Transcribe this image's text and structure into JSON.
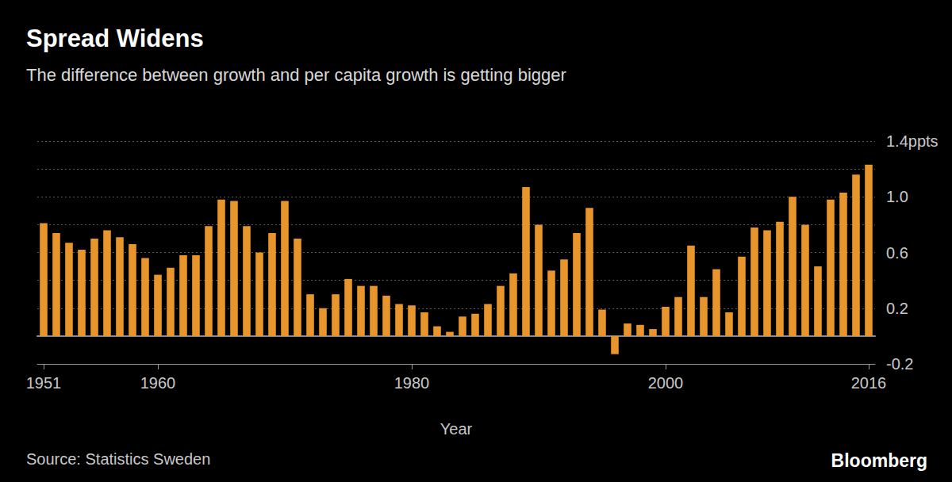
{
  "chart_data": {
    "type": "bar",
    "title": "Spread Widens",
    "subtitle": "The difference between growth and per capita growth is getting bigger",
    "x_label": "Year",
    "source": "Source: Statistics Sweden",
    "logo": "Bloomberg",
    "color": "#e8952e",
    "grid": true,
    "categories": [
      "1951",
      null,
      null,
      null,
      null,
      null,
      null,
      null,
      null,
      "1960",
      null,
      null,
      null,
      null,
      null,
      null,
      null,
      null,
      null,
      null,
      null,
      null,
      null,
      null,
      null,
      null,
      null,
      null,
      null,
      "1980",
      null,
      null,
      null,
      null,
      null,
      null,
      null,
      null,
      null,
      null,
      null,
      null,
      null,
      null,
      null,
      null,
      null,
      null,
      null,
      "2000",
      null,
      null,
      null,
      null,
      null,
      null,
      null,
      null,
      null,
      null,
      null,
      null,
      null,
      null,
      null,
      "2016"
    ],
    "values": [
      0.81,
      0.74,
      0.67,
      0.62,
      0.7,
      0.76,
      0.71,
      0.66,
      0.56,
      0.44,
      0.49,
      0.58,
      0.58,
      0.79,
      0.98,
      0.97,
      0.79,
      0.6,
      0.74,
      0.97,
      0.7,
      0.3,
      0.2,
      0.3,
      0.41,
      0.36,
      0.36,
      0.29,
      0.23,
      0.22,
      0.17,
      0.07,
      0.03,
      0.14,
      0.16,
      0.23,
      0.36,
      0.45,
      1.07,
      0.8,
      0.47,
      0.55,
      0.74,
      0.92,
      0.19,
      -0.13,
      0.09,
      0.08,
      0.05,
      0.21,
      0.28,
      0.65,
      0.28,
      0.48,
      0.17,
      0.57,
      0.78,
      0.76,
      0.82,
      1.0,
      0.8,
      0.5,
      0.98,
      1.03,
      1.16,
      1.23
    ],
    "ylim": [
      -0.2,
      1.4
    ],
    "yticks": [
      -0.2,
      0.2,
      0.6,
      {
        "value": 1,
        "label": "1.0"
      },
      {
        "value": 1.4,
        "label": "1.4ppts"
      }
    ]
  }
}
